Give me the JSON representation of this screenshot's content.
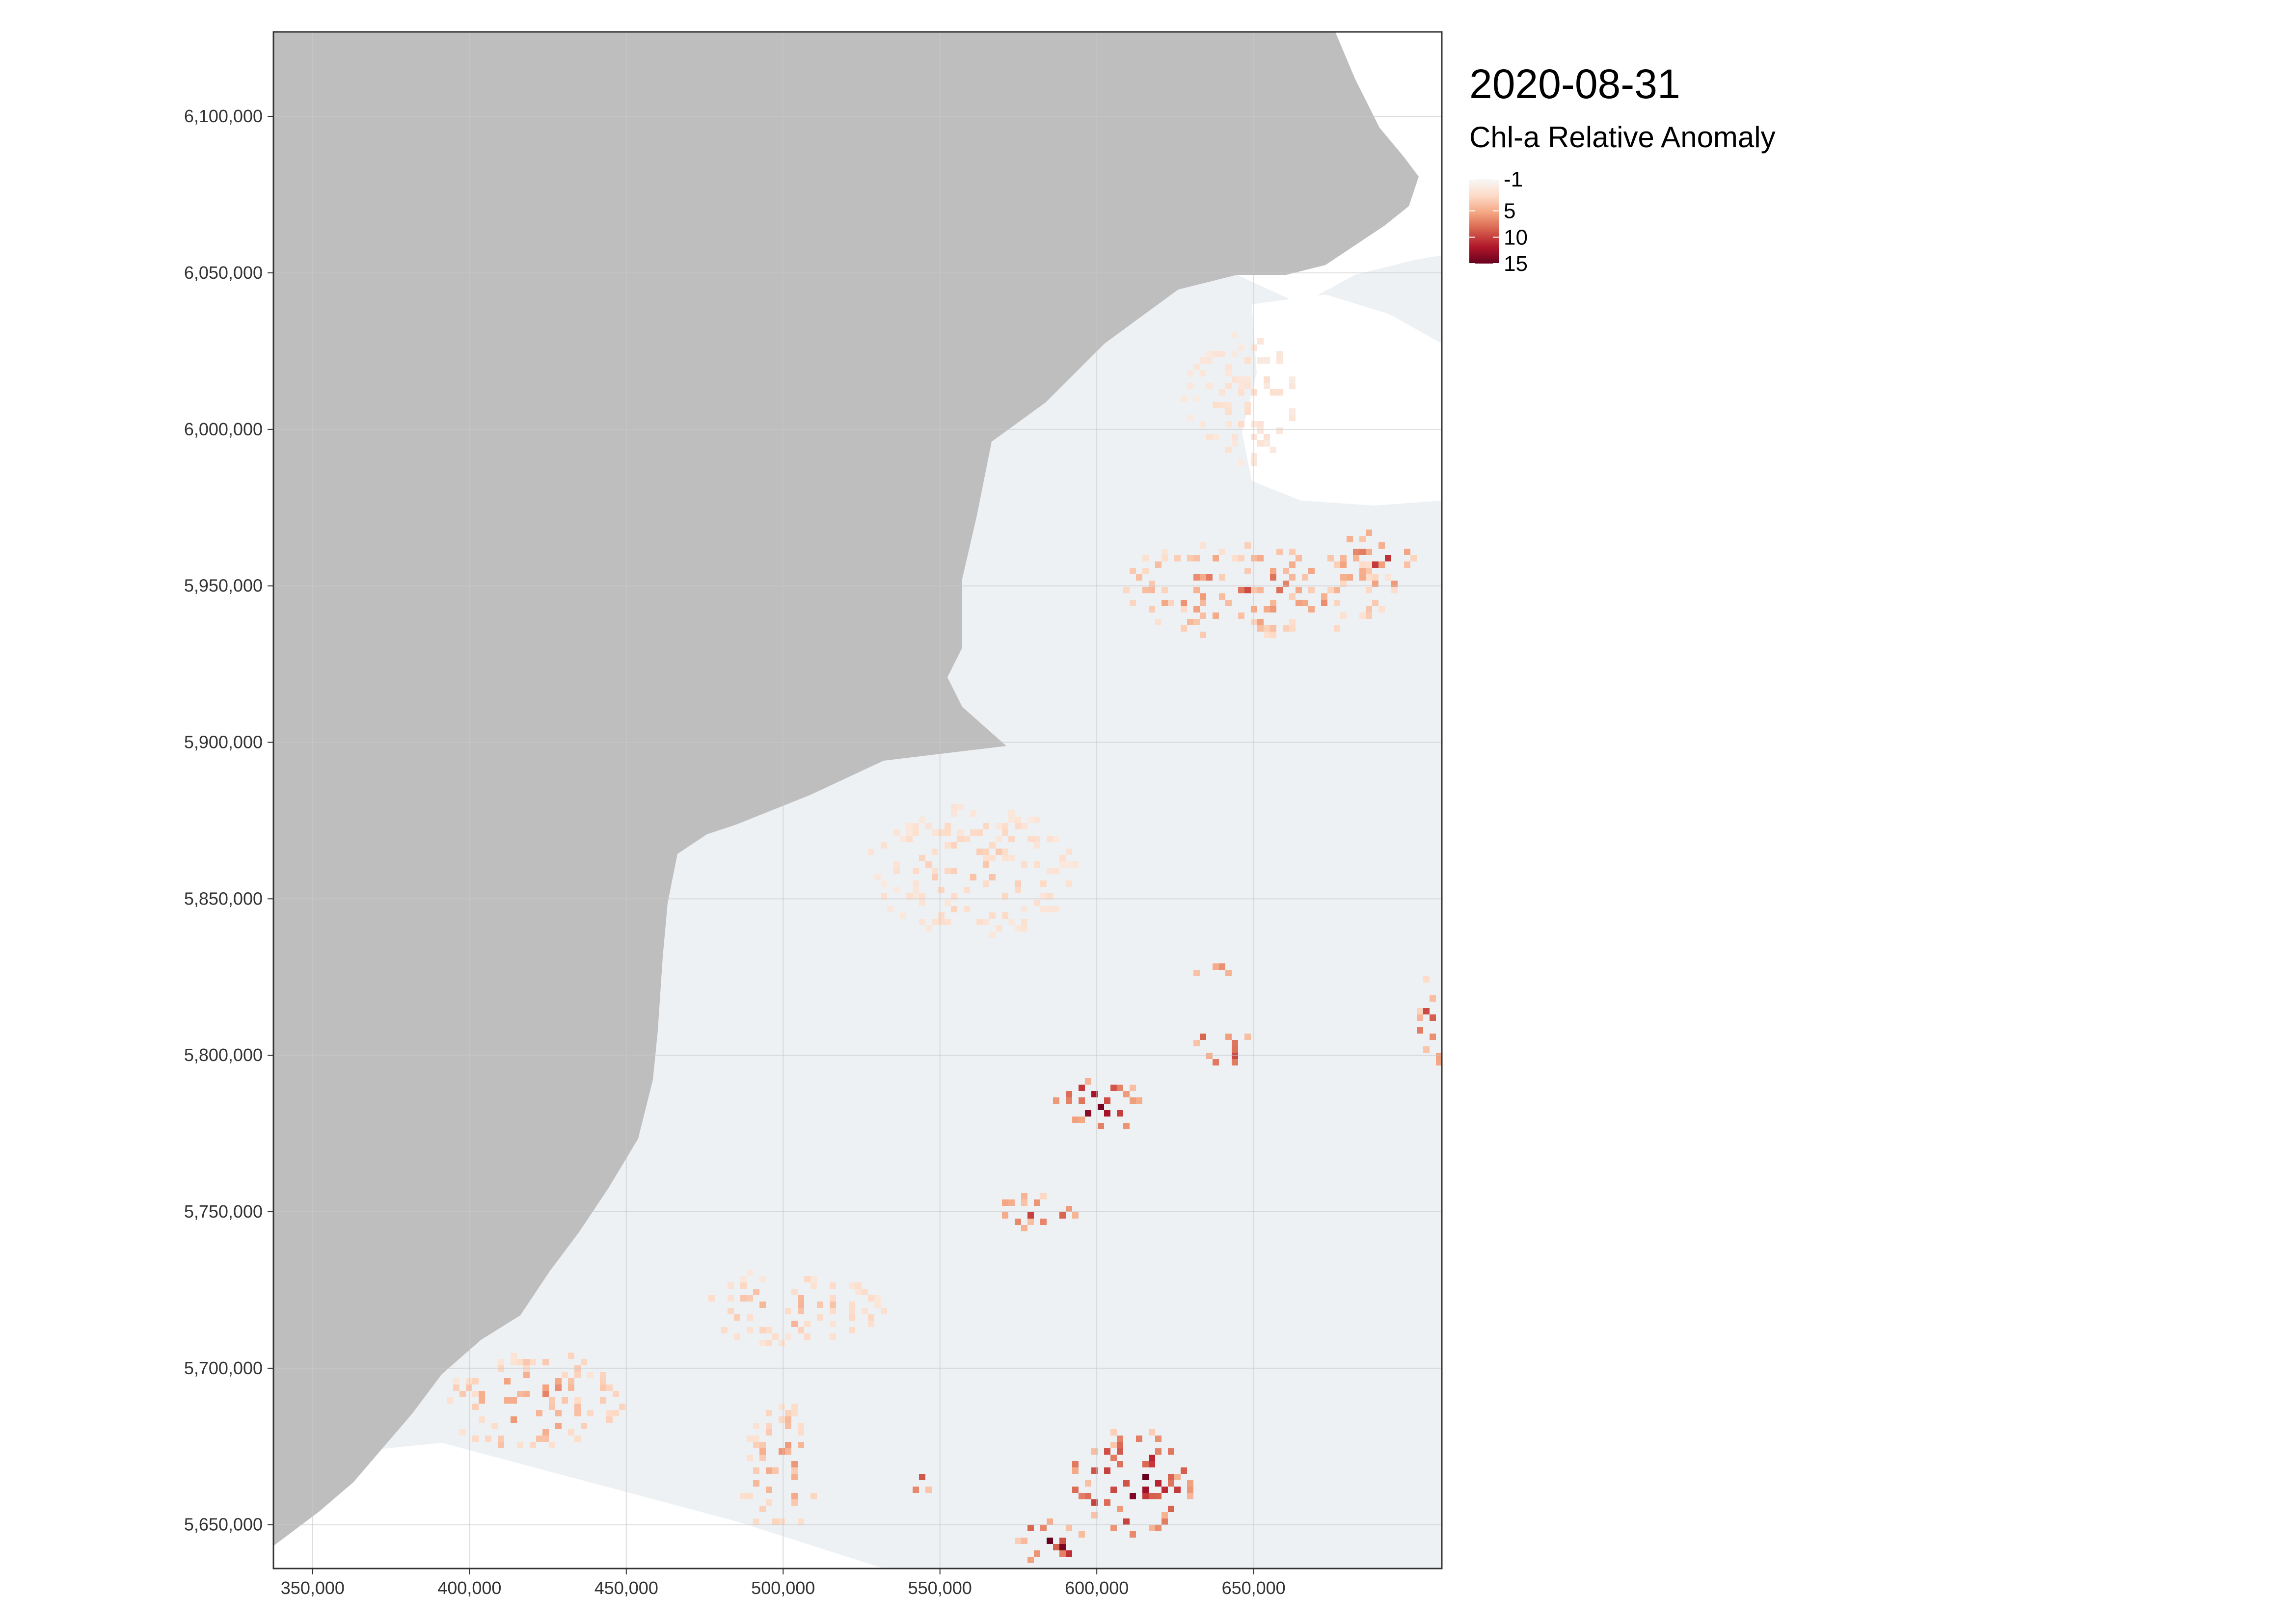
{
  "title": "2020-08-31",
  "legend": {
    "title": "Chl-a Relative Anomaly",
    "breaks": [
      "-1",
      "5",
      "10",
      "15"
    ],
    "min": -1,
    "max": 15,
    "colors": [
      "#f7f7f7",
      "#fddbc7",
      "#f4a582",
      "#d6604d",
      "#b2182b",
      "#67001f"
    ]
  },
  "axes": {
    "x_ticks": [
      "350,000",
      "400,000",
      "450,000",
      "500,000",
      "550,000",
      "600,000",
      "650,000"
    ],
    "y_ticks": [
      "6,100,000",
      "6,050,000",
      "6,000,000",
      "5,950,000",
      "5,900,000",
      "5,850,000",
      "5,800,000",
      "5,750,000",
      "5,700,000",
      "5,650,000"
    ],
    "x_range": [
      337500,
      710000
    ],
    "y_range": [
      5636000,
      6127000
    ]
  },
  "colors": {
    "land": "#bebebe",
    "sea_base": "#eef1f4",
    "grid": "#c8c8c8",
    "panel_border": "#333333"
  },
  "anomaly_zones": [
    {
      "x": 650000,
      "y": 5950000,
      "rx": 46000,
      "ry": 15000,
      "value": 7
    },
    {
      "x": 688000,
      "y": 5960000,
      "rx": 12000,
      "ry": 10000,
      "value": 12
    },
    {
      "x": 600000,
      "y": 5785000,
      "rx": 16000,
      "ry": 8000,
      "value": 15
    },
    {
      "x": 640000,
      "y": 5803000,
      "rx": 11000,
      "ry": 5000,
      "value": 15
    },
    {
      "x": 637000,
      "y": 5827000,
      "rx": 8000,
      "ry": 3000,
      "value": 14
    },
    {
      "x": 580000,
      "y": 5750000,
      "rx": 14000,
      "ry": 6000,
      "value": 11
    },
    {
      "x": 610000,
      "y": 5665000,
      "rx": 20000,
      "ry": 17000,
      "value": 15
    },
    {
      "x": 585000,
      "y": 5645000,
      "rx": 12000,
      "ry": 7000,
      "value": 15
    },
    {
      "x": 544000,
      "y": 5662000,
      "rx": 3000,
      "ry": 6000,
      "value": 15
    },
    {
      "x": 420000,
      "y": 5690000,
      "rx": 28000,
      "ry": 17000,
      "value": 6
    },
    {
      "x": 498000,
      "y": 5668000,
      "rx": 12000,
      "ry": 22000,
      "value": 6
    },
    {
      "x": 500000,
      "y": 5720000,
      "rx": 32000,
      "ry": 12000,
      "value": 4
    },
    {
      "x": 560000,
      "y": 5860000,
      "rx": 34000,
      "ry": 22000,
      "value": 3
    },
    {
      "x": 645000,
      "y": 6010000,
      "rx": 18000,
      "ry": 22000,
      "value": 2
    },
    {
      "x": 705000,
      "y": 5810000,
      "rx": 5000,
      "ry": 15000,
      "value": 10
    }
  ]
}
